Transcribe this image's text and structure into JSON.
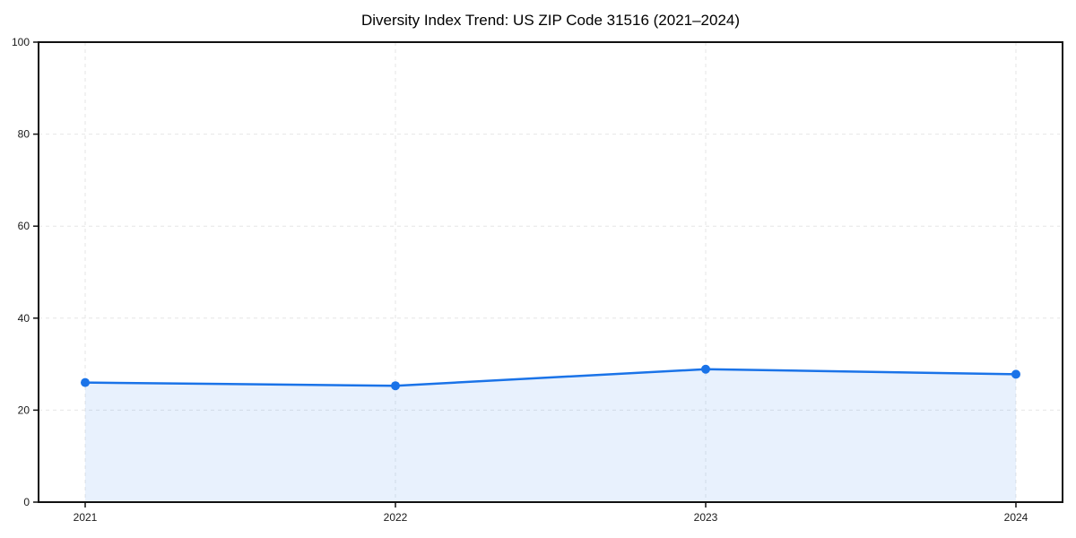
{
  "chart_data": {
    "type": "area",
    "title": "Diversity Index Trend: US ZIP Code 31516 (2021–2024)",
    "categories": [
      "2021",
      "2022",
      "2023",
      "2024"
    ],
    "series": [
      {
        "name": "Diversity Index",
        "values": [
          26.0,
          25.3,
          28.9,
          27.8
        ]
      }
    ],
    "xlabel": "",
    "ylabel": "",
    "ylim": [
      0,
      100
    ],
    "yticks": [
      0,
      20,
      40,
      60,
      80,
      100
    ],
    "grid": true,
    "grid_style": "dashed",
    "legend": "none",
    "marker": "circle",
    "colors": {
      "line": "#1a73e8",
      "marker": "#1a73e8",
      "fill": "rgba(26,115,232,0.10)",
      "grid": "#e6e6e6",
      "spine": "#111111",
      "tick": "#111111",
      "tick_label": "#1a1a1a",
      "title": "#000000",
      "background": "#ffffff"
    }
  }
}
